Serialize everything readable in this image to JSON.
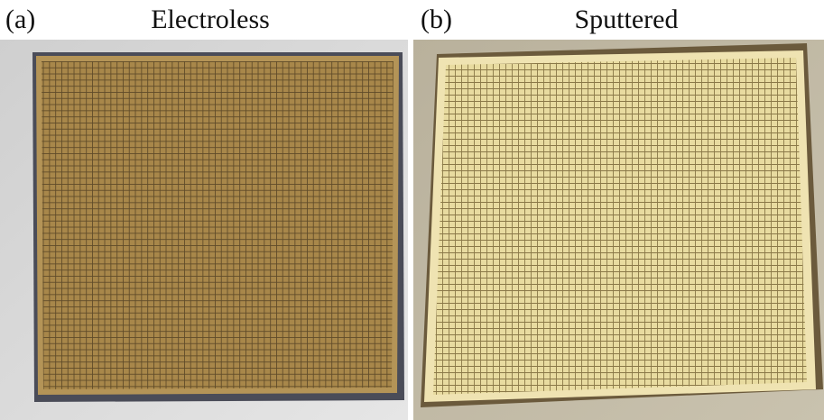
{
  "panels": [
    {
      "label": "(a)",
      "title": "Electroless"
    },
    {
      "label": "(b)",
      "title": "Sputtered"
    }
  ]
}
